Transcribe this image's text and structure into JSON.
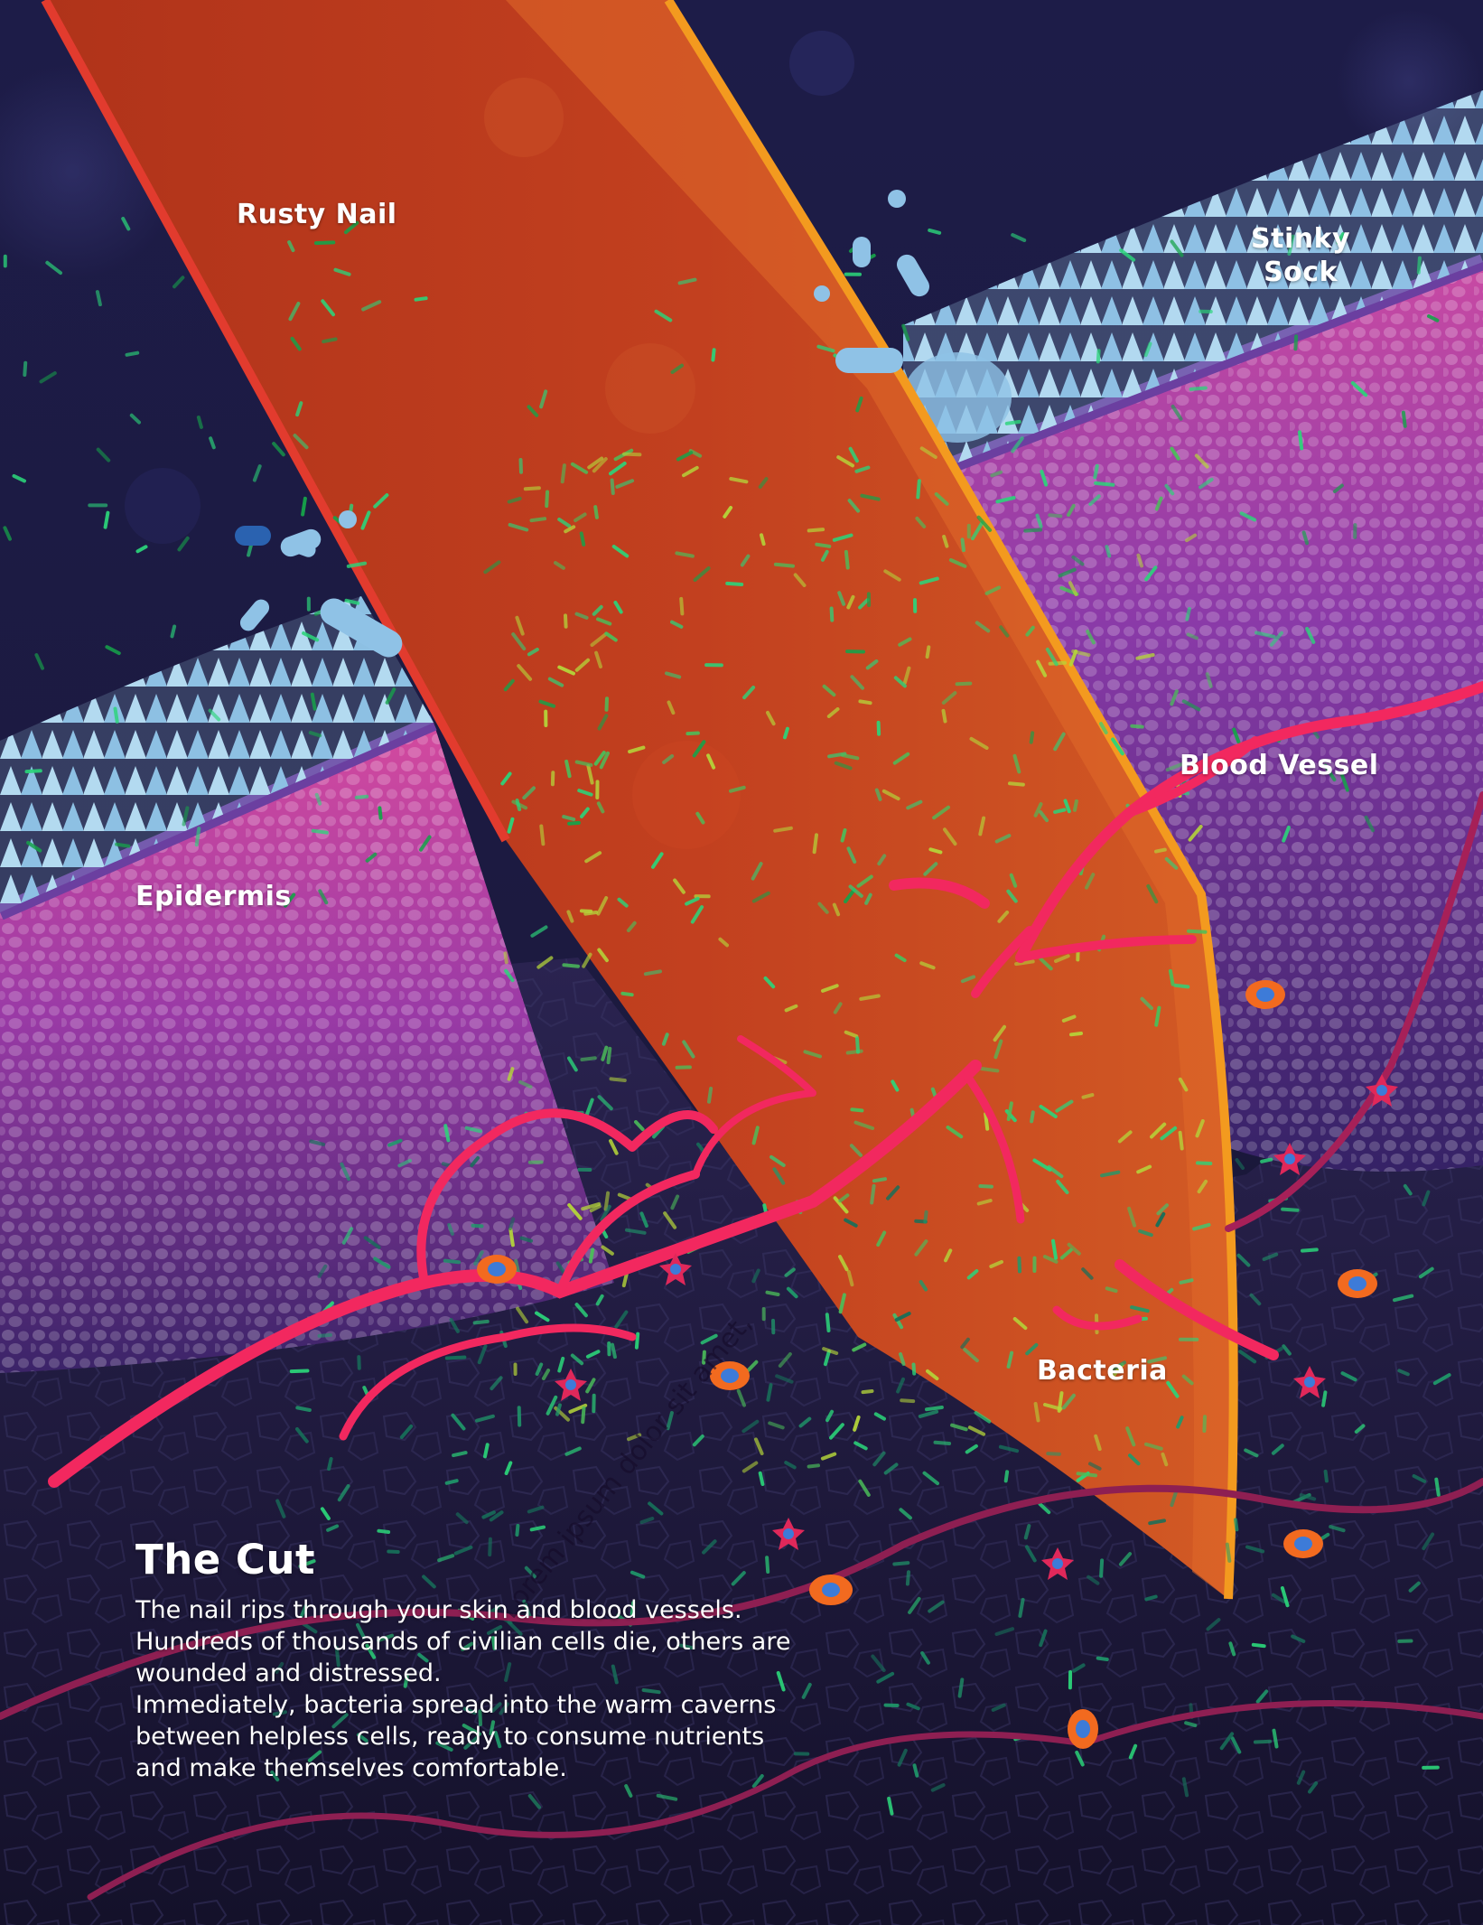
{
  "labels": {
    "rusty_nail": "Rusty Nail",
    "stinky_sock_line1": "Stinky",
    "stinky_sock_line2": "Sock",
    "epidermis": "Epidermis",
    "blood_vessel": "Blood Vessel",
    "bacteria": "Bacteria"
  },
  "stamp_text": "Lorem ipsum dolor sit amet,",
  "caption": {
    "title": "The Cut",
    "lines": [
      "The nail rips through your skin and blood vessels.",
      "Hundreds of thousands of civilian cells die, others are",
      "wounded and distressed.",
      "Immediately, bacteria spread into the warm caverns",
      "between helpless cells, ready to consume nutrients",
      "and make themselves comfortable."
    ]
  },
  "colors": {
    "background": "#1b1a3c",
    "nail": "#c43e1c",
    "nail_edge": "#f3921f",
    "skin_top": "#d84a9a",
    "skin_bottom": "#5b2f91",
    "sock": "#9ecbe8",
    "vessel": "#ff2a6d",
    "bacteria": "#2bd57a"
  }
}
